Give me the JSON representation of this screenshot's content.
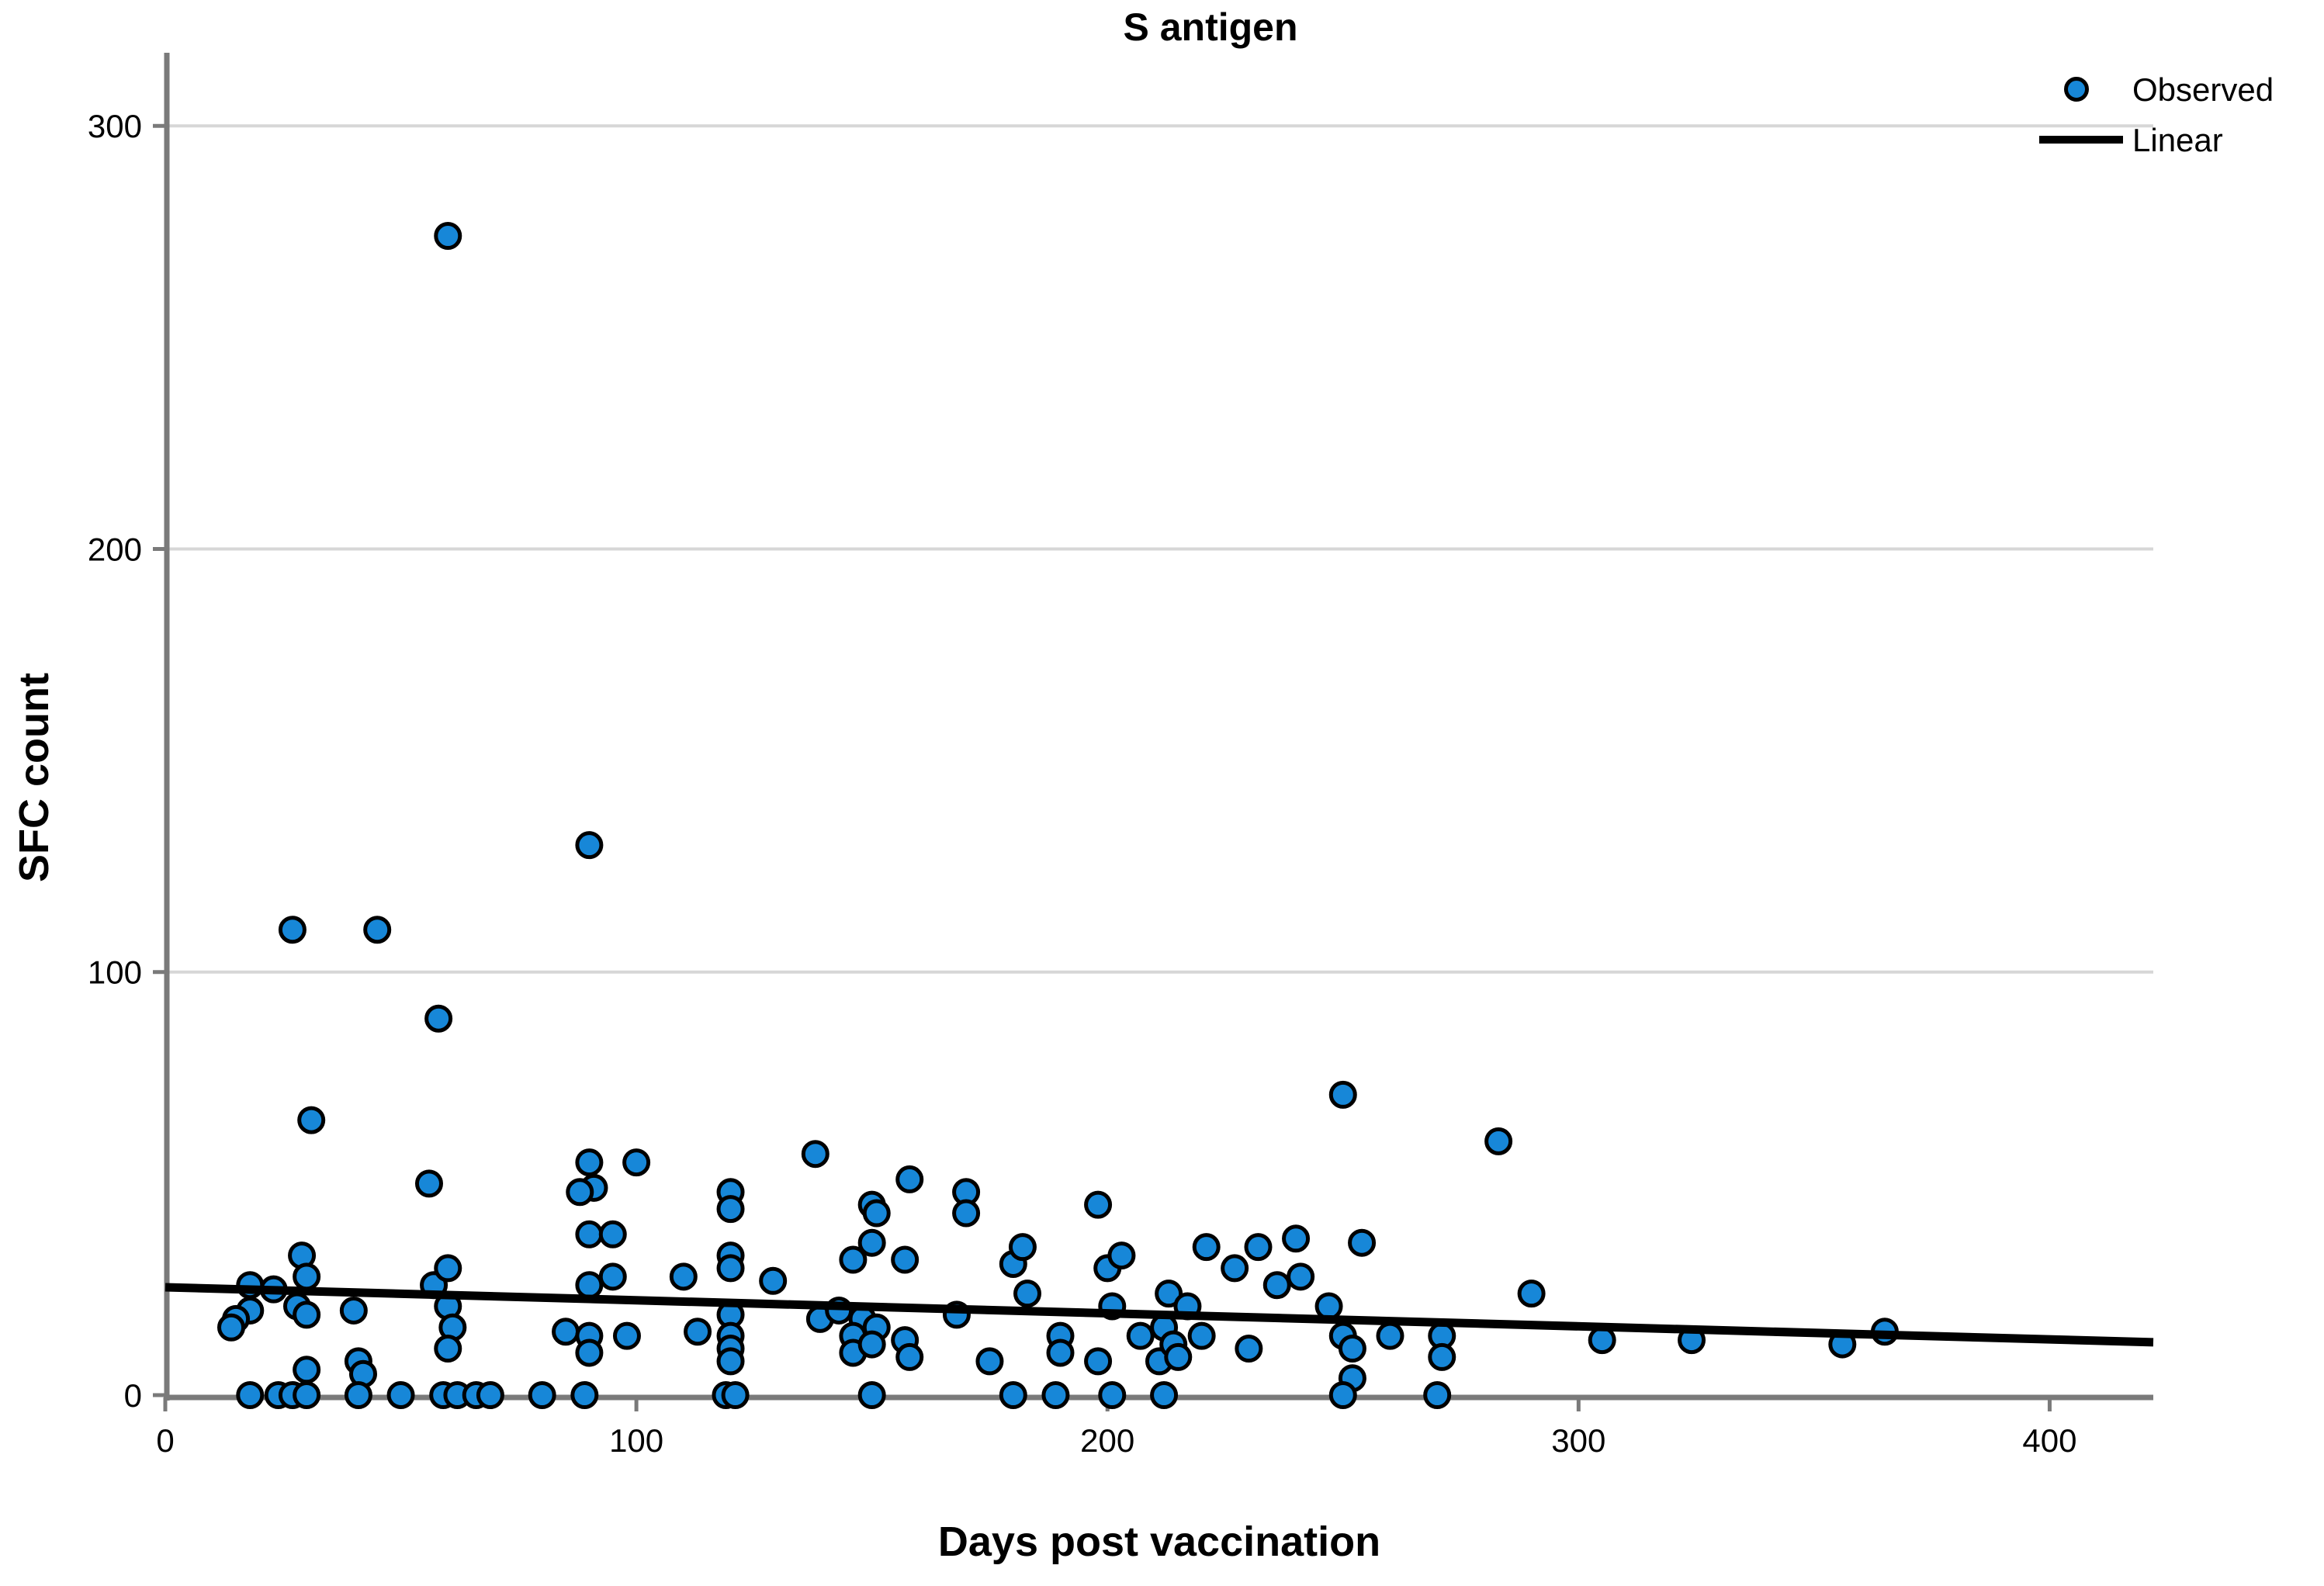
{
  "chart_data": {
    "type": "scatter",
    "title": "S antigen",
    "xlabel": "Days post vaccination",
    "ylabel": "SFC count",
    "xlim": [
      0,
      422
    ],
    "ylim": [
      0,
      316
    ],
    "x_ticks": [
      0,
      100,
      200,
      300,
      400
    ],
    "y_ticks": [
      0,
      100,
      200,
      300
    ],
    "grid": "horizontal-only",
    "legend_position": "top-right",
    "legend": [
      {
        "label": "Observed",
        "marker": "dot"
      },
      {
        "label": "Linear",
        "marker": "line"
      }
    ],
    "series": [
      {
        "name": "Observed",
        "points": [
          [
            60,
            274
          ],
          [
            90,
            130
          ],
          [
            27,
            110
          ],
          [
            45,
            110
          ],
          [
            58,
            89
          ],
          [
            31,
            65
          ],
          [
            250,
            71
          ],
          [
            283,
            60
          ],
          [
            56,
            50
          ],
          [
            90,
            55
          ],
          [
            91,
            49
          ],
          [
            88,
            48
          ],
          [
            100,
            55
          ],
          [
            90,
            38
          ],
          [
            95,
            38
          ],
          [
            110,
            28
          ],
          [
            138,
            57
          ],
          [
            158,
            51
          ],
          [
            150,
            45
          ],
          [
            151,
            43
          ],
          [
            170,
            48
          ],
          [
            170,
            43
          ],
          [
            120,
            48
          ],
          [
            120,
            44
          ],
          [
            198,
            45
          ],
          [
            240,
            37
          ],
          [
            232,
            35
          ],
          [
            221,
            35
          ],
          [
            254,
            36
          ],
          [
            200,
            30
          ],
          [
            203,
            33
          ],
          [
            227,
            30
          ],
          [
            241,
            28
          ],
          [
            236,
            26
          ],
          [
            290,
            24
          ],
          [
            18,
            26
          ],
          [
            18,
            20
          ],
          [
            23,
            25
          ],
          [
            15,
            18
          ],
          [
            14,
            16
          ],
          [
            29,
            33
          ],
          [
            30,
            28
          ],
          [
            28,
            21
          ],
          [
            30,
            19
          ],
          [
            40,
            20
          ],
          [
            57,
            26
          ],
          [
            60,
            30
          ],
          [
            60,
            21
          ],
          [
            61,
            16
          ],
          [
            60,
            11
          ],
          [
            41,
            8
          ],
          [
            42,
            5
          ],
          [
            30,
            6
          ],
          [
            85,
            15
          ],
          [
            90,
            14
          ],
          [
            90,
            10
          ],
          [
            95,
            28
          ],
          [
            90,
            26
          ],
          [
            98,
            14
          ],
          [
            113,
            15
          ],
          [
            120,
            33
          ],
          [
            120,
            30
          ],
          [
            120,
            19
          ],
          [
            120,
            14
          ],
          [
            120,
            11
          ],
          [
            120,
            8
          ],
          [
            129,
            27
          ],
          [
            139,
            18
          ],
          [
            143,
            20
          ],
          [
            146,
            32
          ],
          [
            148,
            18
          ],
          [
            150,
            36
          ],
          [
            151,
            16
          ],
          [
            146,
            14
          ],
          [
            146,
            10
          ],
          [
            150,
            12
          ],
          [
            157,
            32
          ],
          [
            157,
            13
          ],
          [
            158,
            9
          ],
          [
            168,
            19
          ],
          [
            175,
            8
          ],
          [
            180,
            31
          ],
          [
            182,
            35
          ],
          [
            183,
            24
          ],
          [
            190,
            14
          ],
          [
            190,
            10
          ],
          [
            198,
            8
          ],
          [
            201,
            21
          ],
          [
            207,
            14
          ],
          [
            211,
            8
          ],
          [
            212,
            16
          ],
          [
            213,
            24
          ],
          [
            214,
            12
          ],
          [
            215,
            9
          ],
          [
            217,
            21
          ],
          [
            220,
            14
          ],
          [
            230,
            11
          ],
          [
            247,
            21
          ],
          [
            250,
            14
          ],
          [
            252,
            11
          ],
          [
            260,
            14
          ],
          [
            305,
            13
          ],
          [
            324,
            13
          ],
          [
            356,
            12
          ],
          [
            365,
            15
          ],
          [
            271,
            14
          ],
          [
            271,
            9
          ],
          [
            252,
            4
          ],
          [
            18,
            0
          ],
          [
            24,
            0
          ],
          [
            27,
            0
          ],
          [
            30,
            0
          ],
          [
            41,
            0
          ],
          [
            50,
            0
          ],
          [
            59,
            0
          ],
          [
            62,
            0
          ],
          [
            66,
            0
          ],
          [
            69,
            0
          ],
          [
            80,
            0
          ],
          [
            89,
            0
          ],
          [
            119,
            0
          ],
          [
            121,
            0
          ],
          [
            150,
            0
          ],
          [
            180,
            0
          ],
          [
            189,
            0
          ],
          [
            201,
            0
          ],
          [
            212,
            0
          ],
          [
            250,
            0
          ],
          [
            270,
            0
          ]
        ]
      }
    ],
    "trend_line": {
      "name": "Linear",
      "x1": 0,
      "y1": 25.5,
      "x2": 422,
      "y2": 12.5
    }
  },
  "colors": {
    "point_fill": "#1787d8",
    "point_stroke": "#000000",
    "trend_line": "#000000",
    "gridline": "#d7d7d7",
    "axis": "#7a7a7a",
    "background": "#ffffff"
  }
}
